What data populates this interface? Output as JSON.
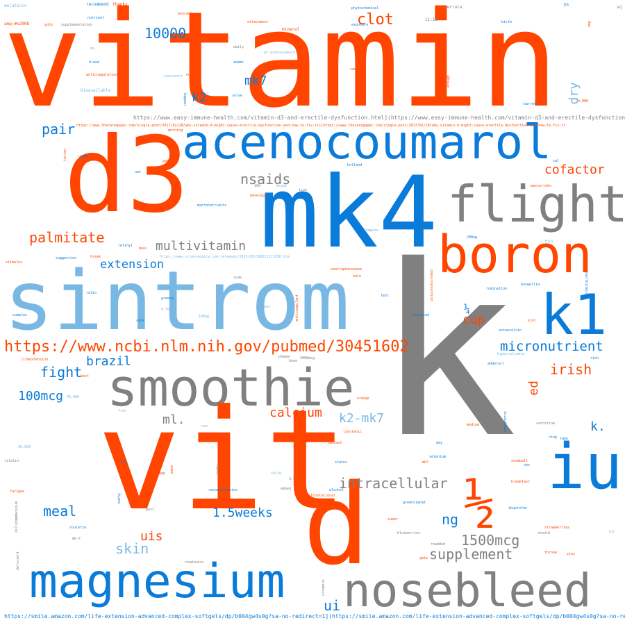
{
  "palette": {
    "orange": "#ff4500",
    "blue": "#0a7bd8",
    "lightblue": "#79b8e3",
    "gray": "#808080"
  },
  "words": [
    {
      "text": "vitamin",
      "color": "orange"
    },
    {
      "text": "d3",
      "color": "orange"
    },
    {
      "text": "acenocoumarol",
      "color": "blue"
    },
    {
      "text": "mk4",
      "color": "blue"
    },
    {
      "text": "flight",
      "color": "gray"
    },
    {
      "text": "boron",
      "color": "orange"
    },
    {
      "text": "sintrom",
      "color": "lightblue"
    },
    {
      "text": "k",
      "color": "gray"
    },
    {
      "text": "k1",
      "color": "blue"
    },
    {
      "text": "smoothie",
      "color": "gray"
    },
    {
      "text": "vit",
      "color": "orange"
    },
    {
      "text": "d",
      "color": "orange"
    },
    {
      "text": "iu",
      "color": "blue"
    },
    {
      "text": "½",
      "color": "orange"
    },
    {
      "text": "magnesium",
      "color": "blue"
    },
    {
      "text": "nosebleed",
      "color": "gray"
    },
    {
      "text": "https://www.ncbi.nlm.nih.gov/pubmed/30451602",
      "color": "orange"
    },
    {
      "text": "clot",
      "color": "orange"
    },
    {
      "text": "10000",
      "color": "blue"
    },
    {
      "text": "mk7",
      "color": "blue"
    },
    {
      "text": "k2",
      "color": "blue"
    },
    {
      "text": "dry",
      "color": "lightblue"
    },
    {
      "text": "pair",
      "color": "blue"
    },
    {
      "text": "cofactor",
      "color": "orange"
    },
    {
      "text": "nsaids",
      "color": "gray"
    },
    {
      "text": "palmitate",
      "color": "orange"
    },
    {
      "text": "multivitamin",
      "color": "gray"
    },
    {
      "text": "extension",
      "color": "blue"
    },
    {
      "text": "micronutrient",
      "color": "blue"
    },
    {
      "text": "cup",
      "color": "orange"
    },
    {
      "text": "¼",
      "color": "blue"
    },
    {
      "text": "brazil",
      "color": "blue"
    },
    {
      "text": "fight",
      "color": "blue"
    },
    {
      "text": "irish",
      "color": "orange"
    },
    {
      "text": "ed",
      "color": "orange"
    },
    {
      "text": "100mcg",
      "color": "blue"
    },
    {
      "text": "ml.",
      "color": "gray"
    },
    {
      "text": "calcium",
      "color": "orange"
    },
    {
      "text": "k2-mk7",
      "color": "lightblue"
    },
    {
      "text": "k.",
      "color": "blue"
    },
    {
      "text": "intracellular",
      "color": "gray"
    },
    {
      "text": "meal",
      "color": "blue"
    },
    {
      "text": "1.5weeks",
      "color": "blue"
    },
    {
      "text": "ng",
      "color": "blue"
    },
    {
      "text": "1500mcg",
      "color": "gray"
    },
    {
      "text": "uis",
      "color": "orange"
    },
    {
      "text": "skin",
      "color": "lightblue"
    },
    {
      "text": "supplement",
      "color": "gray"
    },
    {
      "text": "ui",
      "color": "blue"
    },
    {
      "text": "https://www.easy-immune-health.com/vitamin-d3-and-erectile-dysfunction.html](https://www.easy-immune-health.com/vitamin-d3-and-erectile-dysfunction.html",
      "color": "gray"
    },
    {
      "text": "https://www.thecareguppc.com/single-post/2017/02/28/why-vitamin-d-might-cause-erectile-dysfunction-and-how-to-fix-it](https://www.thecareguppc.com/single-post/2017/02/28/why-vitamin-d-might-cause-erectile-dysfunction-and-how-to-fix-it",
      "color": "orange"
    },
    {
      "text": "https://smile.amazon.com/life-extension-advanced-complex-softgels/dp/b004gw4s0g?sa-no-redirect=1](https://smile.amazon.com/life-extension-advanced-complex-softgels/dp/b004gw4s0g?sa-no-redirect=1",
      "color": "blue"
    },
    {
      "text": "https://www.sciencedaily.com/releases/2019/05/190521171038.htm",
      "color": "lightblue"
    },
    {
      "text": "melatonin",
      "color": "lightblue"
    },
    {
      "text": "amp;#x200b",
      "color": "orange"
    },
    {
      "text": "supplementation",
      "color": "gray"
    },
    {
      "text": "recommend",
      "color": "blue"
    },
    {
      "text": "thanks",
      "color": "orange"
    },
    {
      "text": "nutrient",
      "color": "blue"
    },
    {
      "text": "avocado",
      "color": "orange"
    },
    {
      "text": "phytochemical",
      "color": "blue"
    },
    {
      "text": "serrata",
      "color": "gray"
    },
    {
      "text": "ps",
      "color": "blue"
    },
    {
      "text": "sq",
      "color": "gray"
    },
    {
      "text": "attachment",
      "color": "orange"
    },
    {
      "text": "birth",
      "color": "blue"
    },
    {
      "text": "mineral",
      "color": "orange"
    },
    {
      "text": "exposure",
      "color": "blue"
    },
    {
      "text": "11:10",
      "color": "gray"
    },
    {
      "text": "cu",
      "color": "gray"
    },
    {
      "text": "daily",
      "color": "gray"
    },
    {
      "text": "blood",
      "color": "blue"
    },
    {
      "text": "adams",
      "color": "blue"
    },
    {
      "text": "anticoagulation",
      "color": "orange"
    },
    {
      "text": "indicator",
      "color": "lightblue"
    },
    {
      "text": "nofap",
      "color": "orange"
    },
    {
      "text": "cause",
      "color": "orange"
    },
    {
      "text": "enough",
      "color": "orange"
    },
    {
      "text": "dan",
      "color": "orange"
    },
    {
      "text": "bioavailable",
      "color": "lightblue"
    },
    {
      "text": "barrett",
      "color": "blue"
    },
    {
      "text": "4,000",
      "color": "orange"
    },
    {
      "text": "happen",
      "color": "blue"
    },
    {
      "text": "solve",
      "color": "blue"
    },
    {
      "text": "morning",
      "color": "orange"
    },
    {
      "text": "~5000",
      "color": "blue"
    },
    {
      "text": "tartar",
      "color": "orange"
    },
    {
      "text": "pack",
      "color": "orange"
    },
    {
      "text": "nut",
      "color": "blue"
    },
    {
      "text": "holland",
      "color": "blue"
    },
    {
      "text": "cal",
      "color": "blue"
    },
    {
      "text": "10k",
      "color": "gray"
    },
    {
      "text": "argue",
      "color": "lightblue"
    },
    {
      "text": "icon",
      "color": "gray"
    },
    {
      "text": "beverage",
      "color": "orange"
    },
    {
      "text": "masterjohn",
      "color": "orange"
    },
    {
      "text": "macronutrients",
      "color": "blue"
    },
    {
      "text": "compare",
      "color": "lightblue"
    },
    {
      "text": "200ug",
      "color": "blue"
    },
    {
      "text": "thin",
      "color": "lightblue"
    },
    {
      "text": "retinyl",
      "color": "blue"
    },
    {
      "text": "meal",
      "color": "orange"
    },
    {
      "text": "suggestion",
      "color": "blue"
    },
    {
      "text": "break",
      "color": "orange"
    },
    {
      "text": "stimulus",
      "color": "orange"
    },
    {
      "text": "centrophenoxene",
      "color": "orange"
    },
    {
      "text": "kale",
      "color": "orange"
    },
    {
      "text": "polyunsaturated",
      "color": "orange"
    },
    {
      "text": "rumination",
      "color": "blue"
    },
    {
      "text": "boswellia",
      "color": "blue"
    },
    {
      "text": "overthinking",
      "color": "blue"
    },
    {
      "text": "ratio",
      "color": "blue"
    },
    {
      "text": "greece",
      "color": "blue"
    },
    {
      "text": "soak",
      "color": "gray"
    },
    {
      "text": "test",
      "color": "blue"
    },
    {
      "text": "balanced",
      "color": "blue"
    },
    {
      "text": "complex",
      "color": "blue"
    },
    {
      "text": "cook",
      "color": "blue"
    },
    {
      "text": "anticoagulant",
      "color": "orange"
    },
    {
      "text": "osteocalcin",
      "color": "blue"
    },
    {
      "text": "kjkl",
      "color": "orange"
    },
    {
      "text": "lifeextension",
      "color": "orange"
    },
    {
      "text": "best",
      "color": "orange"
    },
    {
      "text": "hypercalcemia",
      "color": "lightblue"
    },
    {
      "text": "adderall",
      "color": "blue"
    },
    {
      "text": "rich",
      "color": "blue"
    },
    {
      "text": "45,000",
      "color": "lightblue"
    },
    {
      "text": "bone",
      "color": "gray"
    },
    {
      "text": "2000mcg",
      "color": "gray"
    },
    {
      "text": "orange",
      "color": "orange"
    },
    {
      "text": "linolenic",
      "color": "orange"
    },
    {
      "text": "medium",
      "color": "orange"
    },
    {
      "text": "phosphorus",
      "color": "blue"
    },
    {
      "text": "carnitine",
      "color": "gray"
    },
    {
      "text": "stop",
      "color": "blue"
    },
    {
      "text": "take",
      "color": "blue"
    },
    {
      "text": "30,000",
      "color": "lightblue"
    },
    {
      "text": "20,000",
      "color": "orange"
    },
    {
      "text": "spinach",
      "color": "orange"
    },
    {
      "text": "day",
      "color": "blue"
    },
    {
      "text": "ritalin",
      "color": "gray"
    },
    {
      "text": "b12",
      "color": "blue"
    },
    {
      "text": "beep",
      "color": "orange"
    },
    {
      "text": "badly",
      "color": "gray"
    },
    {
      "text": "child",
      "color": "lightblue"
    },
    {
      "text": "status",
      "color": "blue"
    },
    {
      "text": "mk7",
      "color": "orange"
    },
    {
      "text": "selenium",
      "color": "blue"
    },
    {
      "text": "snowball",
      "color": "orange"
    },
    {
      "text": "nhs",
      "color": "blue"
    },
    {
      "text": "fatigue",
      "color": "orange"
    },
    {
      "text": "recommendation",
      "color": "blue"
    },
    {
      "text": "embed",
      "color": "gray"
    },
    {
      "text": "confrontational",
      "color": "orange"
    },
    {
      "text": "alcohol",
      "color": "blue"
    },
    {
      "text": "breakfast",
      "color": "orange"
    },
    {
      "text": "greens(what",
      "color": "blue"
    },
    {
      "text": "ibuprofen",
      "color": "blue"
    },
    {
      "text": "super",
      "color": "orange"
    },
    {
      "text": "strawberries",
      "color": "orange"
    },
    {
      "text": "should",
      "color": "gray"
    },
    {
      "text": "roulette",
      "color": "blue"
    },
    {
      "text": "mk-7",
      "color": "gray"
    },
    {
      "text": "blueberries",
      "color": "gray"
    },
    {
      "text": "readded",
      "color": "gray"
    },
    {
      "text": "throne",
      "color": "orange"
    },
    {
      "text": "zinc",
      "color": "orange"
    },
    {
      "text": "gate",
      "color": "orange"
    },
    {
      "text": "readiness",
      "color": "gray"
    },
    {
      "text": "deficient",
      "color": "gray"
    },
    {
      "text": "vitamins",
      "color": "gray"
    },
    {
      "text": "post",
      "color": "gray"
    },
    {
      "text": "cellphone",
      "color": "gray"
    },
    {
      "text": "3.9",
      "color": "gray"
    },
    {
      "text": "fish",
      "color": "lightblue"
    },
    {
      "text": "0.3%",
      "color": "lightblue"
    },
    {
      "text": "100ug",
      "color": "lightblue"
    },
    {
      "text": "humus",
      "color": "lightblue"
    },
    {
      "text": "shaman",
      "color": "gray"
    },
    {
      "text": "gt;acenocoumarol",
      "color": "lightblue"
    },
    {
      "text": "potassium",
      "color": "gray"
    },
    {
      "text": "yolk",
      "color": "orange"
    },
    {
      "text": "ooo",
      "color": "lightblue"
    },
    {
      "text": "lol",
      "color": "lightblue"
    },
    {
      "text": "wake",
      "color": "orange"
    },
    {
      "text": "bathy",
      "color": "blue"
    }
  ]
}
